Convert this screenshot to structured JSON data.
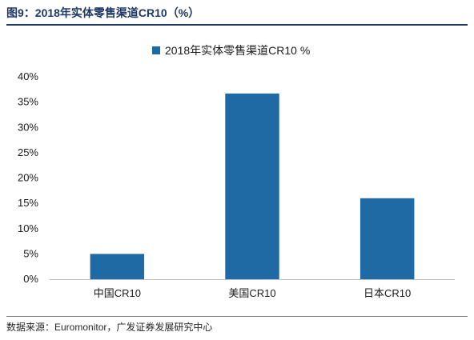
{
  "figure": {
    "title": "图9：2018年实体零售渠道CR10（%）",
    "source": "数据来源：Euromonitor，广发证券发展研究中心"
  },
  "chart_data": {
    "type": "bar",
    "categories": [
      "中国CR10",
      "美国CR10",
      "日本CR10"
    ],
    "series": [
      {
        "name": "2018年实体零售渠道CR10 %",
        "values": [
          5.0,
          36.7,
          16.0
        ],
        "color": "#1f6aa5"
      }
    ],
    "yticks": [
      "0%",
      "5%",
      "10%",
      "15%",
      "20%",
      "25%",
      "30%",
      "35%",
      "40%"
    ],
    "ylim": [
      0,
      40
    ],
    "grid": false,
    "legend_position": "top"
  }
}
